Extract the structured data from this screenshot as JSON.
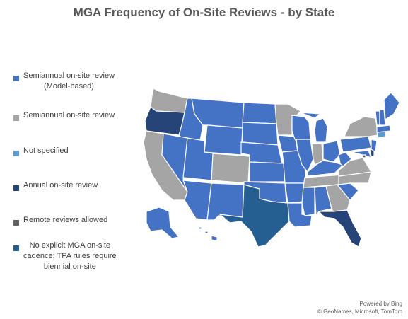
{
  "title": "MGA Frequency of On-Site Reviews - by State",
  "legend": [
    {
      "label": "Semiannual on-site review\n(Model-based)",
      "color": "#4472C4"
    },
    {
      "label": "Semiannual on-site review",
      "color": "#A5A5A5"
    },
    {
      "label": "Not specified",
      "color": "#5B9BD5"
    },
    {
      "label": "Annual on-site review",
      "color": "#264478"
    },
    {
      "label": "Remote reviews allowed",
      "color": "#636363"
    },
    {
      "label": "No explicit MGA on-site\ncadence; TPA rules require\nbiennial on-site",
      "color": "#255E91"
    }
  ],
  "credits": {
    "line1": "Powered by Bing",
    "line2": "© GeoNames, Microsoft, TomTom"
  }
}
